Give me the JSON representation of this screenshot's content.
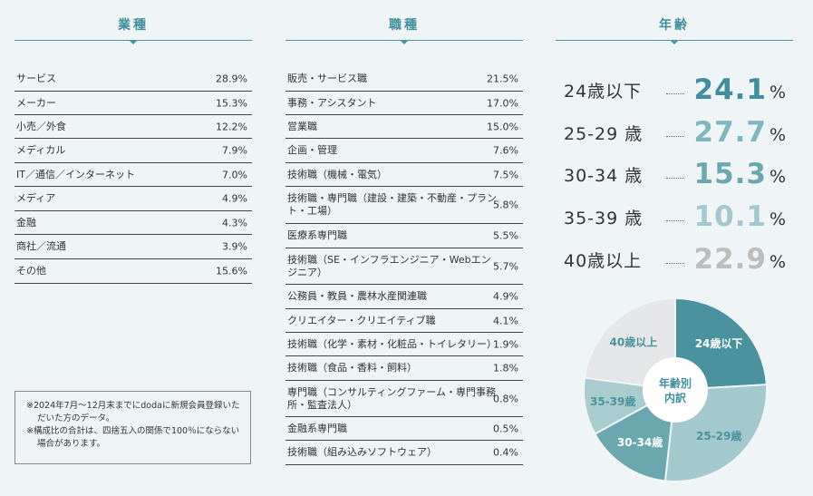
{
  "industry": {
    "title": "業種",
    "rows": [
      {
        "label": "サービス",
        "value": "28.9%"
      },
      {
        "label": "メーカー",
        "value": "15.3%"
      },
      {
        "label": "小売／外食",
        "value": "12.2%"
      },
      {
        "label": "メディカル",
        "value": "7.9%"
      },
      {
        "label": "IT／通信／インターネット",
        "value": "7.0%"
      },
      {
        "label": "メディア",
        "value": "4.9%"
      },
      {
        "label": "金融",
        "value": "4.3%"
      },
      {
        "label": "商社／流通",
        "value": "3.9%"
      },
      {
        "label": "その他",
        "value": "15.6%"
      }
    ]
  },
  "occupation": {
    "title": "職種",
    "rows": [
      {
        "label": "販売・サービス職",
        "value": "21.5%"
      },
      {
        "label": "事務・アシスタント",
        "value": "17.0%"
      },
      {
        "label": "営業職",
        "value": "15.0%"
      },
      {
        "label": "企画・管理",
        "value": "7.6%"
      },
      {
        "label": "技術職（機械・電気）",
        "value": "7.5%"
      },
      {
        "label": "技術職・専門職（建設・建築・不動産・プラント・工場）",
        "value": "5.8%"
      },
      {
        "label": "医療系専門職",
        "value": "5.5%"
      },
      {
        "label": "技術職（SE・インフラエンジニア・Webエンジニア）",
        "value": "5.7%"
      },
      {
        "label": "公務員・教員・農林水産関連職",
        "value": "4.9%"
      },
      {
        "label": "クリエイター・クリエイティブ職",
        "value": "4.1%"
      },
      {
        "label": "技術職（化学・素材・化粧品・トイレタリー）",
        "value": "1.9%"
      },
      {
        "label": "技術職（食品・香料・飼料）",
        "value": "1.8%"
      },
      {
        "label": "専門職（コンサルティングファーム・専門事務所・監査法人）",
        "value": "0.8%"
      },
      {
        "label": "金融系専門職",
        "value": "0.5%"
      },
      {
        "label": "技術職（組み込みソフトウェア）",
        "value": "0.4%"
      }
    ]
  },
  "age": {
    "title": "年齢",
    "pct_sign": "%",
    "rows": [
      {
        "label": "24歳以下",
        "value": "24.1",
        "color": "#3f8f9c"
      },
      {
        "label": "25-29 歳",
        "value": "27.7",
        "color": "#7fb7bf"
      },
      {
        "label": "30-34 歳",
        "value": "15.3",
        "color": "#6aa7ae"
      },
      {
        "label": "35-39 歳",
        "value": "10.1",
        "color": "#a3c8cd"
      },
      {
        "label": "40歳以上",
        "value": "22.9",
        "color": "#bdbdbd"
      }
    ]
  },
  "note": {
    "lines": [
      "※2024年7月～12月末までにdodaに新規会員登録いただいた方のデータ。",
      "※構成比の合計は、四捨五入の関係で100％にならない場合があります。"
    ]
  },
  "chart_data": {
    "type": "pie",
    "center_label": "年齢別\n内訳",
    "categories": [
      "24歳以下",
      "25-29歳",
      "30-34歳",
      "35-39歳",
      "40歳以上"
    ],
    "values": [
      24.1,
      27.7,
      15.3,
      10.1,
      22.9
    ],
    "colors": [
      "#4a929d",
      "#a3c8cd",
      "#6aa7ae",
      "#a9cccf",
      "#e4e6e7"
    ],
    "label_colors": [
      "#ffffff",
      "#4a929d",
      "#ffffff",
      "#4a929d",
      "#4a929d"
    ]
  }
}
